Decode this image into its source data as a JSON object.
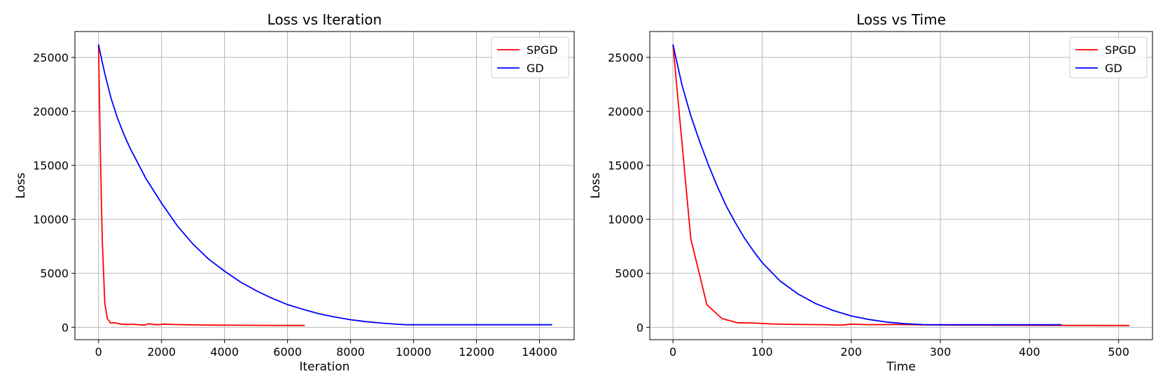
{
  "chart_data": [
    {
      "type": "line",
      "title": "Loss vs Iteration",
      "xlabel": "Iteration",
      "ylabel": "Loss",
      "xlim": [
        -750,
        15100
      ],
      "ylim": [
        -1150,
        27400
      ],
      "xticks": [
        0,
        2000,
        4000,
        6000,
        8000,
        10000,
        12000,
        14000
      ],
      "yticks": [
        0,
        5000,
        10000,
        15000,
        20000,
        25000
      ],
      "grid": true,
      "legend_position": "top-right",
      "series": [
        {
          "name": "SPGD",
          "color": "#ff0000",
          "x": [
            0,
            60,
            120,
            200,
            280,
            380,
            500,
            700,
            900,
            1100,
            1300,
            1450,
            1600,
            1750,
            1900,
            2100,
            2400,
            2800,
            3200,
            3600,
            4000,
            4500,
            5000,
            5500,
            6000,
            6550
          ],
          "y": [
            26200,
            16000,
            8000,
            2200,
            800,
            400,
            420,
            300,
            260,
            280,
            220,
            200,
            320,
            260,
            230,
            290,
            250,
            230,
            210,
            200,
            190,
            185,
            180,
            175,
            170,
            165
          ]
        },
        {
          "name": "GD",
          "color": "#0000ff",
          "x": [
            0,
            100,
            200,
            400,
            600,
            800,
            1000,
            1500,
            2000,
            2500,
            3000,
            3500,
            4000,
            4500,
            5000,
            5500,
            6000,
            6500,
            7000,
            7500,
            8000,
            8500,
            9000,
            9500,
            9800,
            10000,
            11000,
            12000,
            13000,
            14000,
            14400
          ],
          "y": [
            26200,
            24800,
            23500,
            21200,
            19400,
            17900,
            16600,
            13800,
            11500,
            9400,
            7700,
            6300,
            5200,
            4200,
            3400,
            2700,
            2100,
            1650,
            1250,
            950,
            700,
            520,
            380,
            280,
            230,
            230,
            230,
            230,
            230,
            230,
            230
          ]
        }
      ]
    },
    {
      "type": "line",
      "title": "Loss vs Time",
      "xlabel": "Time",
      "ylabel": "Loss",
      "xlim": [
        -26,
        538
      ],
      "ylim": [
        -1150,
        27400
      ],
      "xticks": [
        0,
        100,
        200,
        300,
        400,
        500
      ],
      "yticks": [
        0,
        5000,
        10000,
        15000,
        20000,
        25000
      ],
      "grid": true,
      "legend_position": "top-right",
      "series": [
        {
          "name": "SPGD",
          "color": "#ff0000",
          "x": [
            0,
            20,
            38,
            55,
            72,
            90,
            110,
            130,
            150,
            170,
            190,
            200,
            220,
            250,
            280,
            320,
            360,
            400,
            450,
            512
          ],
          "y": [
            26200,
            8200,
            2100,
            800,
            420,
            400,
            310,
            270,
            250,
            240,
            200,
            290,
            240,
            250,
            220,
            200,
            190,
            180,
            170,
            160
          ]
        },
        {
          "name": "GD",
          "color": "#0000ff",
          "x": [
            0,
            10,
            20,
            30,
            40,
            50,
            60,
            70,
            80,
            90,
            100,
            120,
            140,
            160,
            180,
            200,
            220,
            240,
            260,
            280,
            290,
            300,
            350,
            400,
            436
          ],
          "y": [
            26200,
            22500,
            19600,
            17200,
            15000,
            13000,
            11200,
            9700,
            8300,
            7100,
            6000,
            4300,
            3100,
            2200,
            1550,
            1050,
            720,
            480,
            330,
            250,
            230,
            230,
            230,
            230,
            230
          ]
        }
      ]
    }
  ]
}
